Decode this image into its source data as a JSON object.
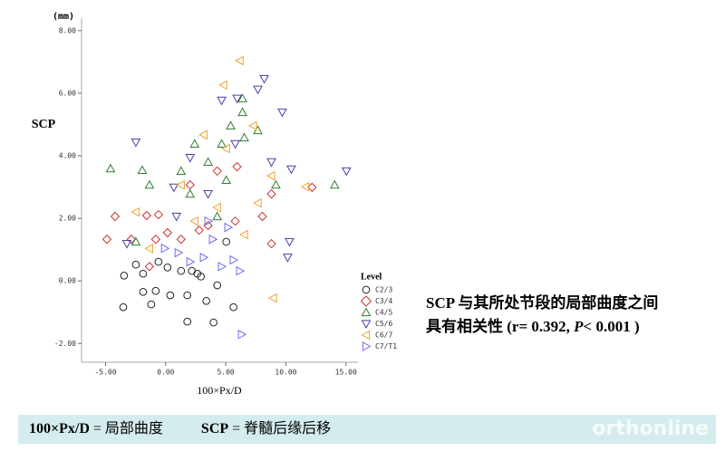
{
  "chart_data": {
    "type": "scatter",
    "y_unit": "(mm)",
    "y_label": "SCP",
    "x_label": "100×Px/D",
    "legend_title": "Level",
    "legend": "right",
    "xlim": [
      -7,
      16
    ],
    "ylim": [
      -2.6,
      8.4
    ],
    "xticks": [
      {
        "value": -5,
        "label": "-5.00"
      },
      {
        "value": 0,
        "label": "0.00"
      },
      {
        "value": 5,
        "label": "5.00"
      },
      {
        "value": 10,
        "label": "10.00"
      },
      {
        "value": 15,
        "label": "15.00"
      }
    ],
    "yticks": [
      {
        "value": 8,
        "label": "8.00"
      },
      {
        "value": 6,
        "label": "6.00"
      },
      {
        "value": 4,
        "label": "4.00"
      },
      {
        "value": 2,
        "label": "2.00"
      },
      {
        "value": 0,
        "label": "0.00"
      },
      {
        "value": -2,
        "label": "-2.00"
      }
    ],
    "series": [
      {
        "name": "C2/3",
        "color": "#222222",
        "marker": "circle",
        "x": [
          -3.46,
          -3.53,
          -1.88,
          -1.88,
          -0.83,
          -1.2,
          0.15,
          0.38,
          1.28,
          1.8,
          1.8,
          2.18,
          2.93,
          3.38,
          3.98,
          4.29,
          5.04,
          5.64,
          -2.48,
          -0.6,
          2.63
        ],
        "y": [
          0.17,
          -0.84,
          0.23,
          -0.35,
          -0.32,
          -0.75,
          0.43,
          -0.46,
          0.32,
          -1.3,
          -0.46,
          0.32,
          0.14,
          -0.64,
          -1.33,
          -0.14,
          1.25,
          -0.84,
          0.52,
          0.61,
          0.23
        ]
      },
      {
        "name": "C3/4",
        "color": "#cc3333",
        "marker": "diamond",
        "x": [
          -4.89,
          -4.21,
          -2.86,
          -1.58,
          -0.6,
          -0.83,
          0.15,
          2.03,
          4.29,
          5.94,
          8.8,
          12.18,
          8.05,
          8.8,
          3.53,
          5.79,
          1.28,
          2.78,
          -1.35
        ],
        "y": [
          1.33,
          2.06,
          1.33,
          2.09,
          2.12,
          1.33,
          1.54,
          3.07,
          3.51,
          3.65,
          2.78,
          2.99,
          2.06,
          1.19,
          1.77,
          1.91,
          1.33,
          1.62,
          0.46
        ]
      },
      {
        "name": "C4/5",
        "color": "#2e7d32",
        "marker": "triangle-up",
        "x": [
          -4.59,
          -1.95,
          -1.35,
          1.28,
          2.41,
          4.66,
          6.39,
          6.54,
          6.39,
          5.41,
          3.53,
          2.03,
          5.04,
          9.17,
          14.06,
          4.29,
          -2.48,
          7.67
        ],
        "y": [
          3.59,
          3.54,
          3.07,
          3.51,
          4.38,
          4.38,
          5.39,
          4.58,
          5.83,
          4.96,
          3.8,
          2.78,
          3.22,
          3.07,
          3.07,
          2.06,
          1.25,
          4.81
        ]
      },
      {
        "name": "C5/6",
        "color": "#4b3fa6",
        "marker": "triangle-down",
        "x": [
          -2.48,
          0.68,
          4.66,
          5.94,
          7.67,
          8.2,
          9.7,
          10.45,
          15.04,
          8.8,
          3.53,
          0.9,
          -3.23,
          10.15,
          10.3,
          5.79,
          2.03
        ],
        "y": [
          4.43,
          2.99,
          5.77,
          5.83,
          6.12,
          6.46,
          5.39,
          3.57,
          3.51,
          3.8,
          2.78,
          2.06,
          1.19,
          0.75,
          1.25,
          4.38,
          3.94
        ]
      },
      {
        "name": "C6/7",
        "color": "#f0a030",
        "marker": "triangle-left",
        "x": [
          6.17,
          4.81,
          7.29,
          8.8,
          11.65,
          8.95,
          5.04,
          3.16,
          1.28,
          -2.48,
          -1.35,
          6.54,
          7.67,
          4.29,
          2.41
        ],
        "y": [
          7.04,
          6.26,
          4.96,
          3.36,
          3.01,
          -0.55,
          4.23,
          4.67,
          3.07,
          2.2,
          1.04,
          1.48,
          2.49,
          2.35,
          1.91
        ]
      },
      {
        "name": "C7/T1",
        "color": "#6d6df2",
        "marker": "triangle-right",
        "x": [
          6.32,
          -0.08,
          1.05,
          2.03,
          3.16,
          3.91,
          4.66,
          5.64,
          6.17,
          3.53,
          5.19
        ],
        "y": [
          -1.71,
          1.04,
          0.9,
          0.61,
          0.75,
          1.33,
          0.46,
          0.67,
          0.32,
          1.91,
          1.71
        ]
      }
    ]
  },
  "note": {
    "line1": "SCP 与其所处节段的局部曲度之间",
    "line2_pre": "具有相关性 (r= 0.392, ",
    "line2_p": "P",
    "line2_post": "< 0.001 )"
  },
  "footer": {
    "items": [
      {
        "term": "100×Px/D",
        "def": "= 局部曲度"
      },
      {
        "term": "SCP",
        "def": "= 脊髓后缘后移"
      }
    ],
    "watermark": "orthonline"
  }
}
